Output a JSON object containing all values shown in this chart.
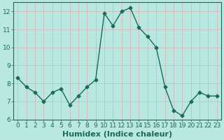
{
  "x": [
    0,
    1,
    2,
    3,
    4,
    5,
    6,
    7,
    8,
    9,
    10,
    11,
    12,
    13,
    14,
    15,
    16,
    17,
    18,
    19,
    20,
    21,
    22,
    23
  ],
  "y": [
    8.3,
    7.8,
    7.5,
    7.0,
    7.5,
    7.7,
    6.8,
    7.3,
    7.8,
    8.2,
    11.9,
    11.2,
    12.0,
    12.2,
    11.1,
    10.6,
    10.0,
    7.8,
    6.5,
    6.2,
    7.0,
    7.5,
    7.3,
    7.3
  ],
  "xlabel": "Humidex (Indice chaleur)",
  "xlim_min": -0.5,
  "xlim_max": 23.5,
  "ylim_min": 6.0,
  "ylim_max": 12.5,
  "yticks": [
    6,
    7,
    8,
    9,
    10,
    11,
    12
  ],
  "xticks": [
    0,
    1,
    2,
    3,
    4,
    5,
    6,
    7,
    8,
    9,
    10,
    11,
    12,
    13,
    14,
    15,
    16,
    17,
    18,
    19,
    20,
    21,
    22,
    23
  ],
  "line_color": "#1a6b5a",
  "marker": "D",
  "marker_size": 2.5,
  "bg_color": "#b8e8e0",
  "grid_color": "#d4b8b8",
  "axis_label_color": "#1a6b5a",
  "tick_color": "#1a6b5a",
  "xlabel_fontsize": 8,
  "tick_fontsize": 6.5,
  "line_width": 1.0,
  "fig_bg": "#b8e8e0"
}
